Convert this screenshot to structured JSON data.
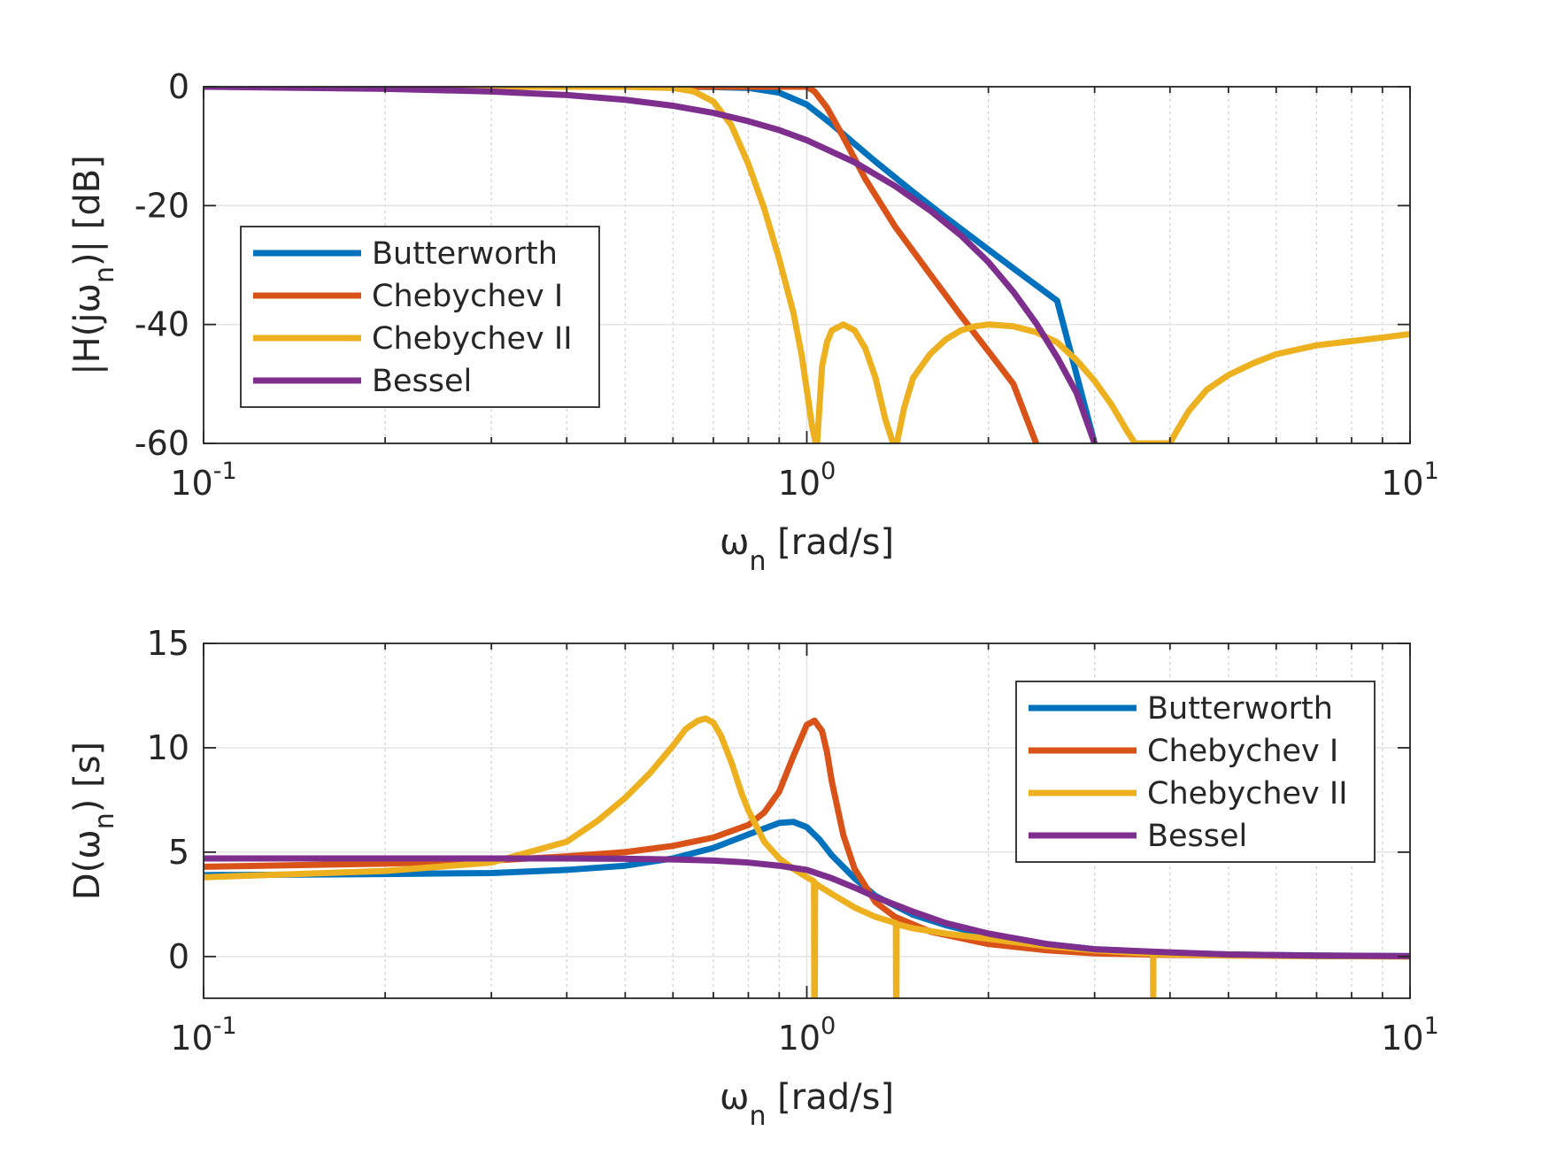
{
  "chart_data": [
    {
      "type": "line",
      "xscale": "log",
      "xlim": [
        0.1,
        10
      ],
      "ylim": [
        -60,
        0
      ],
      "xticks": [
        {
          "base": "10",
          "exp": "-1"
        },
        {
          "base": "10",
          "exp": "0"
        },
        {
          "base": "10",
          "exp": "1"
        }
      ],
      "yticks": [
        0,
        -20,
        -40,
        -60
      ],
      "ytick_labels": [
        "0",
        "-20",
        "-40",
        "-60"
      ],
      "xlabel": {
        "symbol": "ω",
        "sub": "n",
        "unit": " [rad/s]"
      },
      "ylabel": {
        "pre": "|H(j",
        "symbol": "ω",
        "sub": "n",
        "post": ")| [dB]"
      },
      "grid": true,
      "legend_position": "center-left",
      "series": [
        {
          "name": "Butterworth",
          "color": "#0072BD",
          "x": [
            0.1,
            0.3,
            0.5,
            0.6,
            0.7,
            0.8,
            0.9,
            1.0,
            1.1,
            1.2,
            1.3,
            1.5,
            1.7,
            2.0,
            2.3,
            2.6,
            3.0
          ],
          "y": [
            0,
            0,
            0,
            0,
            -0.05,
            -0.2,
            -1.0,
            -3.0,
            -6.3,
            -9.6,
            -12.6,
            -17.7,
            -22.0,
            -27.4,
            -32.0,
            -36.0,
            -60
          ]
        },
        {
          "name": "Chebychev I",
          "color": "#D95319",
          "x": [
            0.1,
            0.3,
            0.5,
            0.7,
            0.85,
            0.93,
            1.0,
            1.03,
            1.08,
            1.15,
            1.25,
            1.4,
            1.6,
            1.8,
            2.0,
            2.2,
            2.4
          ],
          "y": [
            0,
            0,
            0,
            0,
            0,
            0,
            0,
            -0.8,
            -3.5,
            -8.5,
            -15.5,
            -23.5,
            -31.5,
            -38.5,
            -44.5,
            -50,
            -60
          ]
        },
        {
          "name": "Chebychev II",
          "color": "#EDB120",
          "x": [
            0.1,
            0.3,
            0.5,
            0.6,
            0.65,
            0.7,
            0.75,
            0.8,
            0.85,
            0.9,
            0.95,
            0.98,
            1.0,
            1.02,
            1.035,
            1.04,
            1.06,
            1.08,
            1.1,
            1.15,
            1.2,
            1.25,
            1.3,
            1.35,
            1.39,
            1.4,
            1.41,
            1.45,
            1.5,
            1.6,
            1.7,
            1.8,
            1.9,
            2.0,
            2.2,
            2.4,
            2.6,
            2.8,
            3.0,
            3.2,
            3.4,
            3.5,
            3.55,
            4.0,
            4.1,
            4.3,
            4.6,
            5.0,
            5.5,
            6.0,
            7.0,
            8.0,
            9.0,
            10.0
          ],
          "y": [
            0,
            0,
            0,
            -0.2,
            -0.8,
            -2.5,
            -6.5,
            -13,
            -20.5,
            -29,
            -38,
            -45,
            -51,
            -57,
            -60,
            -60,
            -47,
            -43,
            -41,
            -40,
            -41,
            -44,
            -49,
            -56,
            -60,
            -60,
            -60,
            -54,
            -49,
            -45,
            -42.5,
            -41,
            -40.3,
            -40,
            -40.3,
            -41.3,
            -43,
            -46,
            -49.5,
            -53.5,
            -58,
            -60,
            -60,
            -60,
            -58,
            -54.5,
            -51,
            -48.5,
            -46.5,
            -45,
            -43.5,
            -42.8,
            -42.2,
            -41.6
          ]
        },
        {
          "name": "Bessel",
          "color": "#7E2F8E",
          "x": [
            0.1,
            0.2,
            0.3,
            0.4,
            0.5,
            0.6,
            0.7,
            0.8,
            0.9,
            1.0,
            1.2,
            1.4,
            1.6,
            1.8,
            2.0,
            2.2,
            2.4,
            2.6,
            2.8,
            3.0
          ],
          "y": [
            0,
            -0.35,
            -0.8,
            -1.4,
            -2.2,
            -3.2,
            -4.4,
            -5.8,
            -7.3,
            -9.0,
            -12.7,
            -16.7,
            -20.8,
            -25.0,
            -29.5,
            -34.5,
            -39.8,
            -45.5,
            -51.5,
            -60
          ]
        }
      ]
    },
    {
      "type": "line",
      "xscale": "log",
      "xlim": [
        0.1,
        10
      ],
      "ylim": [
        -2,
        15
      ],
      "xticks": [
        {
          "base": "10",
          "exp": "-1"
        },
        {
          "base": "10",
          "exp": "0"
        },
        {
          "base": "10",
          "exp": "1"
        }
      ],
      "yticks": [
        15,
        10,
        5,
        0
      ],
      "ytick_labels": [
        "15",
        "10",
        "5",
        "0"
      ],
      "xlabel": {
        "symbol": "ω",
        "sub": "n",
        "unit": " [rad/s]"
      },
      "ylabel": {
        "pre": "D(",
        "symbol": "ω",
        "sub": "n",
        "post": ") [s]"
      },
      "grid": true,
      "legend_position": "top-right",
      "series": [
        {
          "name": "Butterworth",
          "color": "#0072BD",
          "x": [
            0.1,
            0.2,
            0.3,
            0.4,
            0.5,
            0.6,
            0.7,
            0.8,
            0.9,
            0.95,
            1.0,
            1.05,
            1.1,
            1.2,
            1.3,
            1.5,
            1.7,
            2.0,
            2.5,
            3.0,
            4.0,
            5.0,
            7.0,
            10.0
          ],
          "y": [
            3.9,
            3.95,
            4.0,
            4.15,
            4.35,
            4.7,
            5.2,
            5.85,
            6.4,
            6.45,
            6.2,
            5.6,
            4.85,
            3.75,
            2.9,
            2.0,
            1.5,
            1.0,
            0.6,
            0.35,
            0.18,
            0.1,
            0.05,
            0.02
          ]
        },
        {
          "name": "Chebychev I",
          "color": "#D95319",
          "x": [
            0.1,
            0.2,
            0.3,
            0.4,
            0.5,
            0.6,
            0.7,
            0.8,
            0.85,
            0.9,
            0.95,
            1.0,
            1.03,
            1.06,
            1.08,
            1.1,
            1.15,
            1.2,
            1.3,
            1.4,
            1.6,
            2.0,
            2.5,
            3.0,
            4.0,
            6.0,
            10.0
          ],
          "y": [
            4.3,
            4.45,
            4.6,
            4.8,
            5.0,
            5.3,
            5.7,
            6.3,
            6.9,
            7.9,
            9.6,
            11.1,
            11.3,
            10.8,
            9.8,
            8.4,
            5.8,
            4.2,
            2.6,
            1.9,
            1.2,
            0.6,
            0.3,
            0.15,
            0.08,
            0.03,
            0.01
          ]
        },
        {
          "name": "Chebychev II",
          "color": "#EDB120",
          "x": [
            0.1,
            0.2,
            0.3,
            0.4,
            0.45,
            0.5,
            0.55,
            0.6,
            0.63,
            0.66,
            0.68,
            0.7,
            0.72,
            0.75,
            0.78,
            0.8,
            0.85,
            0.9,
            0.95,
            1.0,
            1.028,
            1.029,
            1.03,
            1.031,
            1.032,
            1.1,
            1.2,
            1.3,
            1.405,
            1.406,
            1.407,
            1.408,
            1.409,
            1.5,
            1.7,
            2.0,
            2.5,
            3.0,
            3.5,
            3.75,
            3.751,
            3.752,
            3.753,
            3.754,
            4.0,
            5.0,
            7.0,
            10.0
          ],
          "y": [
            3.8,
            4.1,
            4.5,
            5.5,
            6.5,
            7.6,
            8.8,
            10.1,
            10.9,
            11.3,
            11.4,
            11.2,
            10.6,
            9.3,
            7.8,
            7.0,
            5.5,
            4.7,
            4.2,
            3.8,
            3.6,
            -2,
            -2,
            -2,
            3.5,
            3.0,
            2.35,
            1.9,
            1.6,
            -2,
            -2,
            -2,
            1.55,
            1.35,
            1.1,
            0.85,
            0.5,
            0.3,
            0.18,
            0.14,
            -2,
            -2,
            -2,
            0.13,
            0.1,
            0.05,
            0.02,
            0.0
          ]
        },
        {
          "name": "Bessel",
          "color": "#7E2F8E",
          "x": [
            0.1,
            0.2,
            0.3,
            0.4,
            0.5,
            0.6,
            0.7,
            0.8,
            0.9,
            1.0,
            1.1,
            1.2,
            1.3,
            1.5,
            1.7,
            2.0,
            2.5,
            3.0,
            4.0,
            5.0,
            7.0,
            10.0
          ],
          "y": [
            4.7,
            4.7,
            4.7,
            4.7,
            4.68,
            4.65,
            4.6,
            4.5,
            4.35,
            4.15,
            3.75,
            3.3,
            2.85,
            2.15,
            1.6,
            1.1,
            0.6,
            0.35,
            0.2,
            0.1,
            0.04,
            0.02
          ]
        }
      ]
    }
  ]
}
